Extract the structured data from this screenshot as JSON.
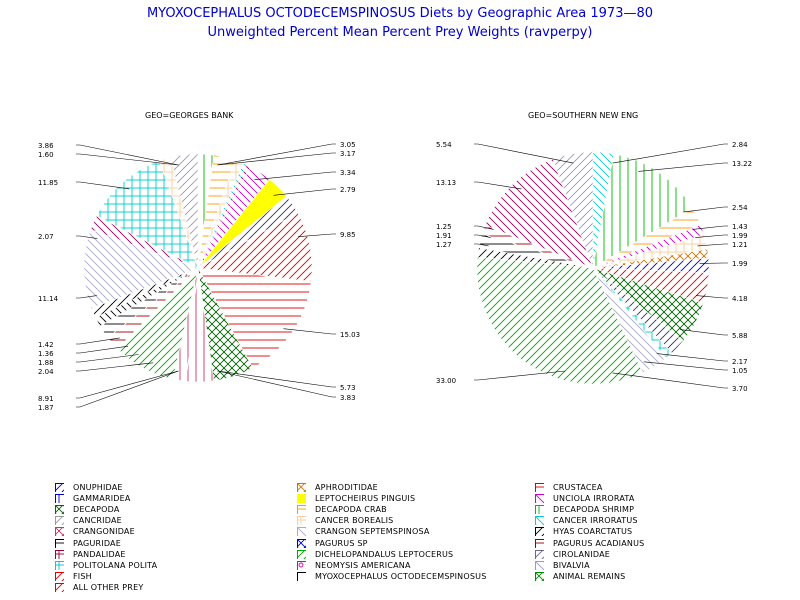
{
  "title": "MYOXOCEPHALUS OCTODECEMSPINOSUS Diets by Geographic Area 1973—80",
  "subtitle": "Unweighted Percent Mean Percent Prey  Weights (ravperpy)",
  "chart_data": {
    "type": "pie",
    "pies": [
      {
        "title": "GEO=GEORGES BANK",
        "slices": [
          {
            "category": "DECAPODA SHRIMP",
            "value": 2.2
          },
          {
            "category": "DECAPODA CRAB",
            "value": 3.05
          },
          {
            "category": "CANCER BOREALIS",
            "value": 1.2
          },
          {
            "category": "CANCER IRRORATUS",
            "value": 0.5
          },
          {
            "category": "CRANGONIDAE",
            "value": 0.6
          },
          {
            "category": "UNCIOLA IRRORATA",
            "value": 3.17
          },
          {
            "category": "LEPTOCHEIRUS PINGUIS",
            "value": 3.34
          },
          {
            "category": "CIROLANIDAE",
            "value": 2.79
          },
          {
            "category": "ALL OTHER PREY",
            "value": 9.85
          },
          {
            "category": "FISH",
            "value": 15.03
          },
          {
            "category": "DECAPODA",
            "value": 5.73
          },
          {
            "category": "CRUSTACEA",
            "value": 3.83
          },
          {
            "category": "ANIMAL REMAINS",
            "value": 1.87
          },
          {
            "category": "DICHELOPANDALUS LEPTOCERUS",
            "value": 8.91
          },
          {
            "category": "PAGURUS ACADIANUS",
            "value": 2.04
          },
          {
            "category": "PAGURIDAE",
            "value": 1.88
          },
          {
            "category": "GAMMARIDEA",
            "value": 1.36
          },
          {
            "category": "HYAS COARCTATUS",
            "value": 1.42
          },
          {
            "category": "CRANGON SEPTEMSPINOSA",
            "value": 11.14
          },
          {
            "category": "CRANGONIDAE",
            "value": 2.07
          },
          {
            "category": "POLITOLANA POLITA",
            "value": 11.85
          },
          {
            "category": "CANCER BOREALIS",
            "value": 1.6
          },
          {
            "category": "BIVALVIA",
            "value": 3.86
          }
        ],
        "labels_left": [
          "3.86",
          "1.60",
          "11.85",
          "2.07",
          "11.14",
          "1.42",
          "1.36",
          "1.88",
          "2.04",
          "8.91",
          "1.87"
        ],
        "labels_right": [
          "3.05",
          "3.17",
          "3.34",
          "2.79",
          "9.85",
          "15.03",
          "5.73",
          "3.83"
        ]
      },
      {
        "title": "GEO=SOUTHERN NEW ENG",
        "slices": [
          {
            "category": "CANCER IRRORATUS",
            "value": 2.84
          },
          {
            "category": "DECAPODA SHRIMP",
            "value": 13.22
          },
          {
            "category": "DECAPODA CRAB",
            "value": 2.54
          },
          {
            "category": "UNCIOLA IRRORATA",
            "value": 1.43
          },
          {
            "category": "CANCER BOREALIS",
            "value": 1.99
          },
          {
            "category": "APHRODITIDAE",
            "value": 1.21
          },
          {
            "category": "ONUPHIDAE",
            "value": 1.99
          },
          {
            "category": "ALL OTHER PREY",
            "value": 4.18
          },
          {
            "category": "DECAPODA",
            "value": 5.88
          },
          {
            "category": "CIROLANIDAE",
            "value": 2.17
          },
          {
            "category": "POLITOLANA POLITA",
            "value": 1.05
          },
          {
            "category": "CRANGON SEPTEMSPINOSA",
            "value": 3.7
          },
          {
            "category": "DICHELOPANDALUS LEPTOCERUS",
            "value": 33.0
          },
          {
            "category": "HYAS COARCTATUS",
            "value": 1.27
          },
          {
            "category": "PAGURIDAE",
            "value": 1.91
          },
          {
            "category": "PAGURUS ACADIANUS",
            "value": 1.25
          },
          {
            "category": "CRANGONIDAE",
            "value": 13.13
          },
          {
            "category": "BIVALVIA",
            "value": 5.54
          }
        ],
        "labels_left": [
          "5.54",
          "13.13",
          "1.25",
          "1.91",
          "1.27",
          "33.00"
        ],
        "labels_right": [
          "2.84",
          "13.22",
          "2.54",
          "1.43",
          "1.99",
          "1.21",
          "1.99",
          "4.18",
          "5.88",
          "2.17",
          "1.05",
          "3.70"
        ]
      }
    ],
    "legend": [
      {
        "label": "ONUPHIDAE",
        "color": "#0000cc",
        "pattern": "diag-r"
      },
      {
        "label": "APHRODITIDAE",
        "color": "#cc7700",
        "pattern": "cross-x"
      },
      {
        "label": "CRUSTACEA",
        "color": "#dd0000",
        "pattern": "horiz"
      },
      {
        "label": "GAMMARIDEA",
        "color": "#0000cc",
        "pattern": "vert"
      },
      {
        "label": "LEPTOCHEIRUS PINGUIS",
        "color": "#ffff00",
        "pattern": "solid"
      },
      {
        "label": "UNCIOLA IRRORATA",
        "color": "#cc00cc",
        "pattern": "diag-l"
      },
      {
        "label": "DECAPODA",
        "color": "#006600",
        "pattern": "cross-x"
      },
      {
        "label": "DECAPODA CRAB",
        "color": "#ff9900",
        "pattern": "horiz"
      },
      {
        "label": "DECAPODA SHRIMP",
        "color": "#00bb00",
        "pattern": "vert"
      },
      {
        "label": "CANCRIDAE",
        "color": "#999999",
        "pattern": "diag-r"
      },
      {
        "label": "CANCER BOREALIS",
        "color": "#ffcc99",
        "pattern": "cross"
      },
      {
        "label": "CANCER IRRORATUS",
        "color": "#00cccc",
        "pattern": "diag-l"
      },
      {
        "label": "CRANGONIDAE",
        "color": "#cc3366",
        "pattern": "cross-x"
      },
      {
        "label": "CRANGON SEPTEMSPINOSA",
        "color": "#aaaacc",
        "pattern": "diag-l"
      },
      {
        "label": "HYAS COARCTATUS",
        "color": "#000000",
        "pattern": "diag-r"
      },
      {
        "label": "PAGURIDAE",
        "color": "#000000",
        "pattern": "horiz"
      },
      {
        "label": "PAGURUS SP",
        "color": "#0000cc",
        "pattern": "cross-x"
      },
      {
        "label": "PAGURUS ACADIANUS",
        "color": "#990000",
        "pattern": "horiz"
      },
      {
        "label": "PANDALIDAE",
        "color": "#990033",
        "pattern": "cross"
      },
      {
        "label": "DICHELOPANDALUS LEPTOCERUS",
        "color": "#00aa00",
        "pattern": "diag-r"
      },
      {
        "label": "CIROLANIDAE",
        "color": "#666699",
        "pattern": "diag-r"
      },
      {
        "label": "POLITOLANA POLITA",
        "color": "#00cccc",
        "pattern": "cross"
      },
      {
        "label": "NEOMYSIS AMERICANA",
        "color": "#cc00cc",
        "pattern": "circle"
      },
      {
        "label": "BIVALVIA",
        "color": "#9999cc",
        "pattern": "diag-l"
      },
      {
        "label": "FISH",
        "color": "#dd0000",
        "pattern": "diag-r"
      },
      {
        "label": "MYOXOCEPHALUS OCTODECEMSPINOSUS",
        "color": "#000000",
        "pattern": "none"
      },
      {
        "label": "ANIMAL REMAINS",
        "color": "#008800",
        "pattern": "cross-x"
      },
      {
        "label": "ALL OTHER PREY",
        "color": "#dd0000",
        "pattern": "diag-r"
      }
    ]
  },
  "slice_styles": {
    "DECAPODA SHRIMP": {
      "color": "#00bb00",
      "pattern": "vert"
    },
    "DECAPODA CRAB": {
      "color": "#ff9900",
      "pattern": "horiz"
    },
    "CANCER BOREALIS": {
      "color": "#ffcc99",
      "pattern": "cross"
    },
    "CANCER IRRORATUS": {
      "color": "#00cccc",
      "pattern": "diag-l"
    },
    "CRANGONIDAE": {
      "color": "#990066",
      "pattern": "diag-l"
    },
    "UNCIOLA IRRORATA": {
      "color": "#cc00cc",
      "pattern": "diag-l"
    },
    "LEPTOCHEIRUS PINGUIS": {
      "color": "#ffff00",
      "pattern": "solid"
    },
    "CIROLANIDAE": {
      "color": "#333366",
      "pattern": "diag-r"
    },
    "ALL OTHER PREY": {
      "color": "#dd0000",
      "pattern": "diag-r"
    },
    "FISH": {
      "color": "#dd0000",
      "pattern": "horiz"
    },
    "DECAPODA": {
      "color": "#006600",
      "pattern": "cross-x"
    },
    "CRUSTACEA": {
      "color": "#cc3366",
      "pattern": "vert"
    },
    "ANIMAL REMAINS": {
      "color": "#cc3366",
      "pattern": "vert"
    },
    "DICHELOPANDALUS LEPTOCERUS": {
      "color": "#00aa00",
      "pattern": "diag-r"
    },
    "PAGURUS ACADIANUS": {
      "color": "#990000",
      "pattern": "horiz"
    },
    "PAGURIDAE": {
      "color": "#000000",
      "pattern": "horiz"
    },
    "GAMMARIDEA": {
      "color": "#000000",
      "pattern": "diag-l"
    },
    "HYAS COARCTATUS": {
      "color": "#000000",
      "pattern": "diag-r"
    },
    "CRANGON SEPTEMSPINOSA": {
      "color": "#aaaacc",
      "pattern": "diag-l"
    },
    "POLITOLANA POLITA": {
      "color": "#00cccc",
      "pattern": "cross"
    },
    "BIVALVIA": {
      "color": "#9999bb",
      "pattern": "diag-r"
    },
    "APHRODITIDAE": {
      "color": "#cc7700",
      "pattern": "cross-x"
    },
    "ONUPHIDAE": {
      "color": "#0000cc",
      "pattern": "diag-r"
    }
  }
}
